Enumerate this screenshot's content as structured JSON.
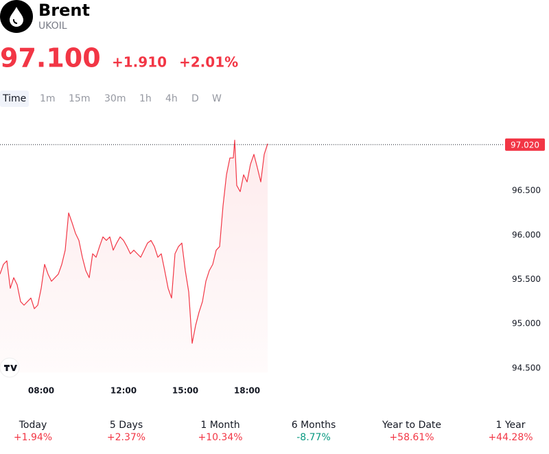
{
  "header": {
    "name": "Brent",
    "symbol": "UKOIL",
    "price": "97.100",
    "change": "+1.910",
    "change_percent": "+2.01%"
  },
  "timeframes": [
    "Time",
    "1m",
    "15m",
    "30m",
    "1h",
    "4h",
    "D",
    "W"
  ],
  "performance": [
    {
      "period": "Today",
      "change": "+1.94%"
    },
    {
      "period": "5 Days",
      "change": "+2.37%"
    },
    {
      "period": "1 Month",
      "change": "+10.34%"
    },
    {
      "period": "6 Months",
      "change": "-8.77%"
    },
    {
      "period": "Year to Date",
      "change": "+58.61%"
    },
    {
      "period": "1 Year",
      "change": "+44.28%"
    }
  ],
  "chart_data": {
    "type": "line",
    "color": "#f23645",
    "x": [
      360,
      370,
      380,
      390,
      400,
      410,
      420,
      430,
      440,
      450,
      460,
      470,
      480,
      490,
      500,
      510,
      520,
      530,
      540,
      550,
      560,
      570,
      580,
      590,
      600,
      610,
      620,
      630,
      640,
      650,
      660,
      670,
      680,
      690,
      700,
      710,
      720,
      730,
      740,
      750,
      760,
      770,
      780,
      790,
      800,
      810,
      820,
      830,
      840,
      850,
      860,
      870,
      880,
      890,
      900,
      910,
      920,
      930,
      940,
      950,
      960,
      970,
      980,
      990,
      1000,
      1010,
      1020,
      1030,
      1040,
      1044,
      1050,
      1060,
      1070,
      1080,
      1090,
      1100,
      1110,
      1120,
      1130,
      1140
    ],
    "values": [
      95.56,
      95.67,
      95.71,
      95.4,
      95.52,
      95.44,
      95.25,
      95.21,
      95.25,
      95.29,
      95.17,
      95.21,
      95.4,
      95.67,
      95.56,
      95.48,
      95.52,
      95.56,
      95.67,
      95.83,
      96.25,
      96.14,
      96.02,
      95.94,
      95.75,
      95.6,
      95.52,
      95.79,
      95.75,
      95.87,
      95.98,
      95.94,
      95.98,
      95.83,
      95.91,
      95.98,
      95.94,
      95.87,
      95.79,
      95.83,
      95.79,
      95.75,
      95.83,
      95.91,
      95.94,
      95.87,
      95.75,
      95.79,
      95.6,
      95.4,
      95.29,
      95.79,
      95.87,
      95.91,
      95.6,
      95.36,
      94.78,
      94.98,
      95.13,
      95.25,
      95.48,
      95.6,
      95.67,
      95.83,
      95.87,
      96.33,
      96.68,
      96.87,
      96.87,
      97.07,
      96.56,
      96.49,
      96.68,
      96.6,
      96.8,
      96.91,
      96.76,
      96.6,
      96.91,
      97.03
    ],
    "xlim": [
      360,
      1830
    ],
    "xticks": [
      {
        "value": 480,
        "label": "08:00"
      },
      {
        "value": 720,
        "label": "12:00"
      },
      {
        "value": 900,
        "label": "15:00"
      },
      {
        "value": 1080,
        "label": "18:00"
      }
    ],
    "ylim": [
      94.39,
      97.29
    ],
    "yticks": [
      {
        "value": 94.5,
        "label": "94.500"
      },
      {
        "value": 95,
        "label": "95.000"
      },
      {
        "value": 95.5,
        "label": "95.500"
      },
      {
        "value": 96,
        "label": "96.000"
      },
      {
        "value": 96.5,
        "label": "96.500"
      }
    ],
    "price_line": {
      "value": 97.02,
      "label": "97.020"
    }
  }
}
